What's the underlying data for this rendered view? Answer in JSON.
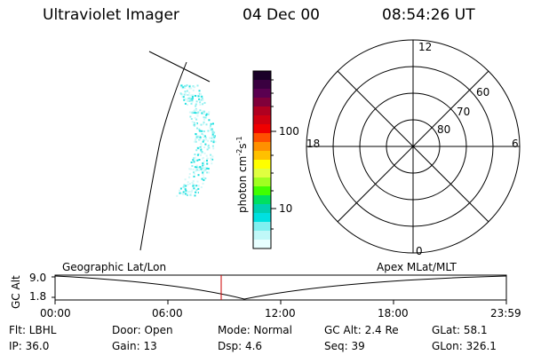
{
  "header": {
    "instrument": "Ultraviolet Imager",
    "date": "04 Dec 00",
    "time": "08:54:26 UT"
  },
  "colorbar": {
    "unit": "photon cm",
    "unit_sup1": "-2",
    "unit_s": "s",
    "unit_sup2": "-1",
    "tick_100": "100",
    "tick_10": "10",
    "colors": [
      "#1a0028",
      "#3a0040",
      "#5a0050",
      "#80003a",
      "#b00020",
      "#d00010",
      "#f00000",
      "#ff5000",
      "#ff9000",
      "#ffc000",
      "#ffff00",
      "#e0ff40",
      "#a0ff20",
      "#40ff00",
      "#00e060",
      "#00d0b0",
      "#00e0e0",
      "#80f0f0",
      "#c0f8f8",
      "#e8ffff"
    ]
  },
  "polar": {
    "label_top": "12",
    "label_bottom": "0",
    "label_left": "18",
    "label_right": "6",
    "ring_60": "60",
    "ring_70": "70",
    "ring_80": "80"
  },
  "timeline": {
    "left_label": "Geographic Lat/Lon",
    "right_label": "Apex MLat/MLT",
    "axis_title": "GC Alt",
    "y_top": "9.0",
    "y_bottom": "1.8",
    "ticks": [
      "00:00",
      "06:00",
      "12:00",
      "18:00",
      "23:59"
    ],
    "marker_color": "#cc0000"
  },
  "info": {
    "filter": "Flt: LBHL",
    "ip": "IP: 36.0",
    "door": "Door: Open",
    "gain": "Gain: 13",
    "mode": "Mode:  Normal",
    "dsp": "Dsp:     4.6",
    "gcalt": "GC Alt: 2.4 Re",
    "seq": "Seq: 39",
    "glat": "GLat:  58.1",
    "glon": "GLon: 326.1"
  }
}
